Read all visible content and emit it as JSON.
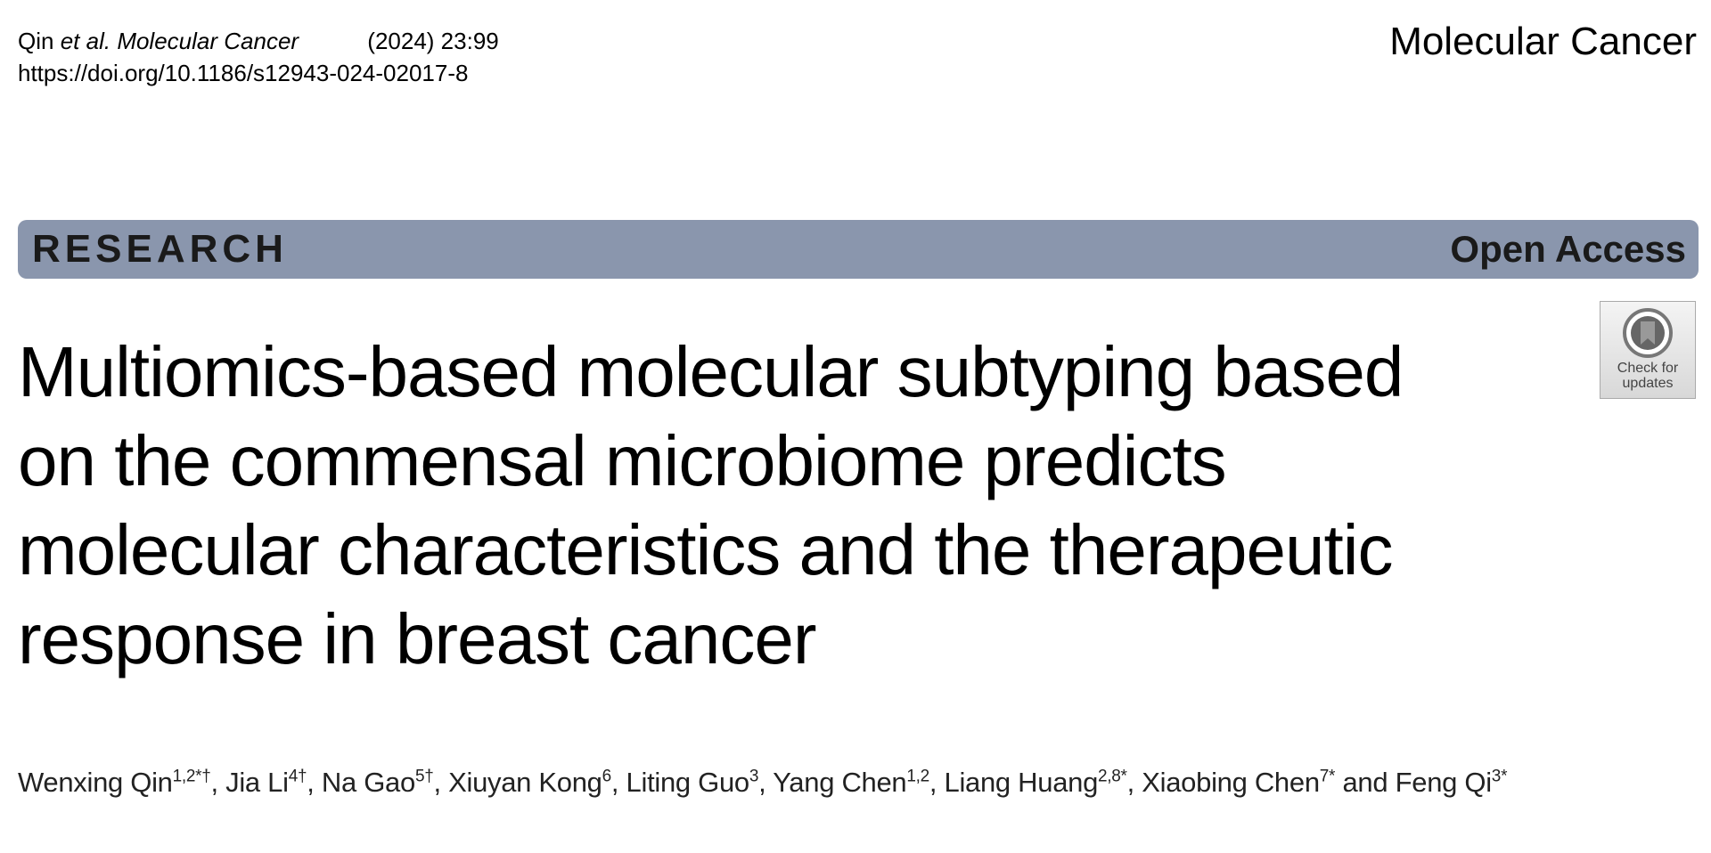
{
  "header": {
    "author": "Qin",
    "etal": "et al.",
    "journal_italic": "Molecular Cancer",
    "volume": "(2024) 23:99",
    "doi": "https://doi.org/10.1186/s12943-024-02017-8",
    "journal": "Molecular Cancer"
  },
  "banner": {
    "type": "RESEARCH",
    "access": "Open Access"
  },
  "badge": {
    "line1": "Check for",
    "line2": "updates"
  },
  "title": {
    "lines": [
      "Multiomics-based molecular subtyping based",
      "on the commensal microbiome predicts",
      "molecular characteristics and the therapeutic",
      "response in breast cancer"
    ]
  },
  "authors": {
    "list": [
      {
        "name": "Wenxing Qin",
        "affiliation": "1,2*†"
      },
      {
        "name": "Jia Li",
        "affiliation": "4†"
      },
      {
        "name": "Na Gao",
        "affiliation": "5†"
      },
      {
        "name": "Xiuyan Kong",
        "affiliation": "6"
      },
      {
        "name": "Liting Guo",
        "affiliation": "3"
      },
      {
        "name": "Yang Chen",
        "affiliation": "1,2"
      },
      {
        "name": "Liang Huang",
        "affiliation": "2,8*"
      },
      {
        "name": "Xiaobing Chen",
        "affiliation": "7*"
      }
    ],
    "conjunction": "and",
    "last": {
      "name": "Feng Qi",
      "affiliation": "3*"
    }
  }
}
